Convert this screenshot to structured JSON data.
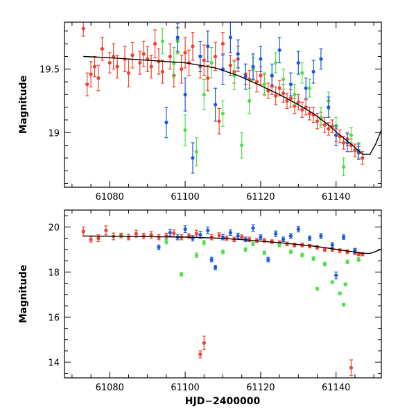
{
  "figure": {
    "xlabel": "HJD−2400000",
    "colors": {
      "red": "#f43f2b",
      "green": "#4ee04a",
      "blue": "#1a5ae0",
      "model": "#000000"
    }
  },
  "chart_data": [
    {
      "type": "scatter",
      "panel": "top",
      "ylabel": "Magnitude",
      "xlim": [
        61068,
        61152
      ],
      "ylim": [
        19.87,
        18.57
      ],
      "y_inverted": true,
      "xticks": [
        61080,
        61100,
        61120,
        61140
      ],
      "yticks": [
        19,
        19.5
      ],
      "ytick_labels": [
        "19",
        "19.5"
      ],
      "model_curve": {
        "x": [
          61073,
          61080,
          61090,
          61100,
          61108,
          61114,
          61120,
          61125,
          61130,
          61134,
          61138,
          61141,
          61144,
          61147,
          61149,
          61150.5,
          61152
        ],
        "y": [
          19.6,
          19.59,
          19.57,
          19.55,
          19.51,
          19.45,
          19.37,
          19.3,
          19.22,
          19.15,
          19.06,
          18.98,
          18.91,
          18.83,
          18.83,
          18.91,
          19.02
        ]
      },
      "series": [
        {
          "name": "red",
          "color": "#f43f2b",
          "x": [
            61073,
            61074,
            61075,
            61076,
            61077,
            61078,
            61080,
            61081,
            61082,
            61084,
            61085,
            61086,
            61088,
            61089,
            61090,
            61091,
            61092,
            61093,
            61094,
            61096,
            61097,
            61098,
            61099,
            61100,
            61101,
            61102,
            61104,
            61105,
            61106,
            61108,
            61109,
            61110,
            61112,
            61113,
            61114,
            61116,
            61117,
            61118,
            61119,
            61120,
            61121,
            61122,
            61123,
            61124,
            61125,
            61126,
            61127,
            61128,
            61129,
            61130,
            61131,
            61132,
            61133,
            61134,
            61135,
            61136,
            61137,
            61138,
            61139,
            61140,
            61141,
            61142,
            61143,
            61144,
            61145,
            61146,
            61147
          ],
          "y": [
            19.82,
            19.38,
            19.46,
            19.52,
            19.43,
            19.66,
            19.55,
            19.6,
            19.52,
            19.58,
            19.47,
            19.61,
            19.55,
            19.62,
            19.58,
            19.52,
            19.7,
            19.56,
            19.48,
            19.6,
            19.45,
            19.73,
            19.5,
            19.63,
            19.55,
            19.68,
            19.52,
            19.57,
            19.43,
            19.6,
            19.09,
            19.7,
            19.53,
            19.48,
            19.58,
            19.46,
            19.42,
            19.5,
            19.4,
            19.45,
            19.38,
            19.33,
            19.37,
            19.29,
            19.35,
            19.31,
            19.25,
            19.27,
            19.21,
            19.24,
            19.18,
            19.2,
            19.15,
            19.14,
            19.09,
            19.11,
            19.06,
            19.03,
            19.05,
            18.98,
            18.97,
            18.92,
            18.95,
            18.9,
            18.86,
            18.84,
            18.8
          ],
          "err": [
            0.06,
            0.09,
            0.1,
            0.08,
            0.1,
            0.09,
            0.08,
            0.1,
            0.09,
            0.1,
            0.11,
            0.1,
            0.09,
            0.1,
            0.1,
            0.09,
            0.11,
            0.1,
            0.09,
            0.1,
            0.09,
            0.1,
            0.11,
            0.12,
            0.1,
            0.11,
            0.09,
            0.12,
            0.1,
            0.11,
            0.1,
            0.09,
            0.08,
            0.09,
            0.1,
            0.08,
            0.07,
            0.09,
            0.08,
            0.07,
            0.08,
            0.06,
            0.07,
            0.07,
            0.06,
            0.07,
            0.06,
            0.07,
            0.06,
            0.06,
            0.06,
            0.06,
            0.05,
            0.06,
            0.06,
            0.05,
            0.06,
            0.05,
            0.05,
            0.05,
            0.05,
            0.05,
            0.05,
            0.05,
            0.05,
            0.05,
            0.05
          ]
        },
        {
          "name": "green",
          "color": "#4ee04a",
          "x": [
            61094,
            61097,
            61098,
            61100,
            61103,
            61105,
            61107,
            61110,
            61113,
            61115,
            61117,
            61118,
            61121,
            61124,
            61126,
            61129,
            61131,
            61133,
            61136,
            61138,
            61140,
            61142,
            61144,
            61146
          ],
          "y": [
            19.72,
            19.55,
            19.72,
            19.02,
            18.85,
            19.3,
            19.55,
            19.15,
            19.45,
            18.9,
            19.25,
            19.5,
            19.38,
            19.55,
            19.42,
            19.3,
            19.47,
            19.35,
            19.12,
            19.25,
            19.05,
            18.73,
            18.98,
            18.86
          ],
          "err": [
            0.1,
            0.12,
            0.1,
            0.12,
            0.11,
            0.12,
            0.12,
            0.1,
            0.11,
            0.1,
            0.1,
            0.09,
            0.09,
            0.08,
            0.08,
            0.08,
            0.08,
            0.07,
            0.08,
            0.07,
            0.07,
            0.07,
            0.06,
            0.06
          ]
        },
        {
          "name": "blue",
          "color": "#1a5ae0",
          "x": [
            61095,
            61098,
            61100,
            61102,
            61104,
            61106,
            61108,
            61110,
            61112,
            61114,
            61116,
            61118,
            61120,
            61123,
            61125,
            61128,
            61130,
            61132,
            61134,
            61136,
            61138,
            61140,
            61143,
            61146
          ],
          "y": [
            19.08,
            19.75,
            19.3,
            18.8,
            19.6,
            19.68,
            19.22,
            19.5,
            19.75,
            19.62,
            19.44,
            19.52,
            19.58,
            19.45,
            19.65,
            19.38,
            19.55,
            19.35,
            19.48,
            19.58,
            19.2,
            18.98,
            18.92,
            18.85
          ],
          "err": [
            0.12,
            0.11,
            0.13,
            0.12,
            0.12,
            0.12,
            0.13,
            0.12,
            0.12,
            0.11,
            0.1,
            0.1,
            0.1,
            0.09,
            0.1,
            0.09,
            0.09,
            0.08,
            0.09,
            0.08,
            0.08,
            0.08,
            0.07,
            0.06
          ]
        }
      ]
    },
    {
      "type": "scatter",
      "panel": "bottom",
      "ylabel": "Magnitude",
      "xlabel": "HJD−2400000",
      "xlim": [
        61068,
        61152
      ],
      "ylim": [
        20.75,
        13.3
      ],
      "y_inverted": true,
      "xticks": [
        61080,
        61100,
        61120,
        61140
      ],
      "yticks": [
        14,
        16,
        18,
        20
      ],
      "ytick_labels": [
        "14",
        "16",
        "18",
        "20"
      ],
      "model_curve": {
        "x": [
          61073,
          61080,
          61090,
          61100,
          61108,
          61114,
          61120,
          61125,
          61130,
          61134,
          61138,
          61141,
          61144,
          61147,
          61149,
          61150.5,
          61152
        ],
        "y": [
          19.6,
          19.59,
          19.57,
          19.55,
          19.51,
          19.45,
          19.37,
          19.3,
          19.22,
          19.15,
          19.06,
          18.98,
          18.91,
          18.83,
          18.83,
          18.91,
          19.02
        ]
      },
      "series": [
        {
          "name": "red",
          "color": "#f43f2b",
          "x": [
            61073,
            61075,
            61077,
            61079,
            61081,
            61083,
            61085,
            61087,
            61089,
            61091,
            61093,
            61095,
            61097,
            61099,
            61101,
            61103,
            61104,
            61105,
            61107,
            61109,
            61111,
            61113,
            61115,
            61117,
            61119,
            61121,
            61123,
            61125,
            61127,
            61129,
            61131,
            61133,
            61135,
            61137,
            61139,
            61141,
            61143,
            61144,
            61145,
            61146,
            61147
          ],
          "y": [
            19.8,
            19.45,
            19.5,
            19.85,
            19.58,
            19.62,
            19.55,
            19.7,
            19.6,
            19.65,
            19.55,
            19.6,
            19.72,
            19.55,
            19.6,
            19.7,
            14.35,
            14.85,
            19.55,
            19.62,
            19.5,
            19.45,
            19.55,
            19.45,
            19.4,
            19.4,
            19.35,
            19.3,
            19.25,
            19.2,
            19.2,
            19.15,
            19.1,
            19.0,
            19.0,
            18.95,
            18.9,
            13.75,
            18.85,
            18.8,
            18.8
          ],
          "err": [
            0.2,
            0.12,
            0.15,
            0.2,
            0.15,
            0.1,
            0.12,
            0.15,
            0.12,
            0.15,
            0.12,
            0.12,
            0.15,
            0.12,
            0.1,
            0.15,
            0.15,
            0.3,
            0.12,
            0.12,
            0.1,
            0.1,
            0.1,
            0.1,
            0.08,
            0.08,
            0.08,
            0.08,
            0.08,
            0.08,
            0.08,
            0.08,
            0.08,
            0.08,
            0.08,
            0.08,
            0.08,
            0.35,
            0.08,
            0.08,
            0.08
          ]
        },
        {
          "name": "green",
          "color": "#4ee04a",
          "x": [
            61095,
            61099,
            61103,
            61105,
            61110,
            61116,
            61118,
            61121,
            61125,
            61128,
            61131,
            61134,
            61135,
            61137,
            61139,
            61141,
            61142,
            61142.5,
            61143,
            61145,
            61146
          ],
          "y": [
            19.35,
            17.9,
            18.75,
            19.3,
            18.9,
            19.0,
            19.25,
            18.85,
            19.2,
            18.9,
            18.75,
            18.6,
            17.25,
            18.35,
            17.55,
            17.05,
            16.55,
            17.45,
            18.45,
            18.95,
            18.55
          ],
          "err": [
            0.1,
            0.08,
            0.1,
            0.1,
            0.08,
            0.08,
            0.08,
            0.08,
            0.08,
            0.08,
            0.08,
            0.08,
            0.06,
            0.08,
            0.06,
            0.06,
            0.06,
            0.06,
            0.08,
            0.08,
            0.08
          ]
        },
        {
          "name": "blue",
          "color": "#1a5ae0",
          "x": [
            61093,
            61096,
            61098,
            61100,
            61102,
            61104,
            61106,
            61107,
            61108,
            61110,
            61112,
            61114,
            61116,
            61118,
            61120,
            61122,
            61124,
            61126,
            61128,
            61130,
            61133,
            61136,
            61139,
            61140,
            61142,
            61145
          ],
          "y": [
            19.1,
            19.75,
            19.55,
            19.9,
            19.5,
            19.65,
            19.85,
            18.55,
            18.2,
            19.55,
            19.75,
            19.6,
            19.45,
            19.95,
            19.55,
            18.55,
            19.7,
            19.45,
            19.6,
            19.9,
            19.5,
            19.6,
            19.2,
            17.85,
            19.55,
            18.95
          ],
          "err": [
            0.1,
            0.15,
            0.12,
            0.15,
            0.12,
            0.15,
            0.15,
            0.1,
            0.1,
            0.12,
            0.12,
            0.12,
            0.1,
            0.15,
            0.1,
            0.1,
            0.12,
            0.1,
            0.1,
            0.12,
            0.1,
            0.1,
            0.1,
            0.15,
            0.1,
            0.1
          ]
        }
      ]
    }
  ]
}
